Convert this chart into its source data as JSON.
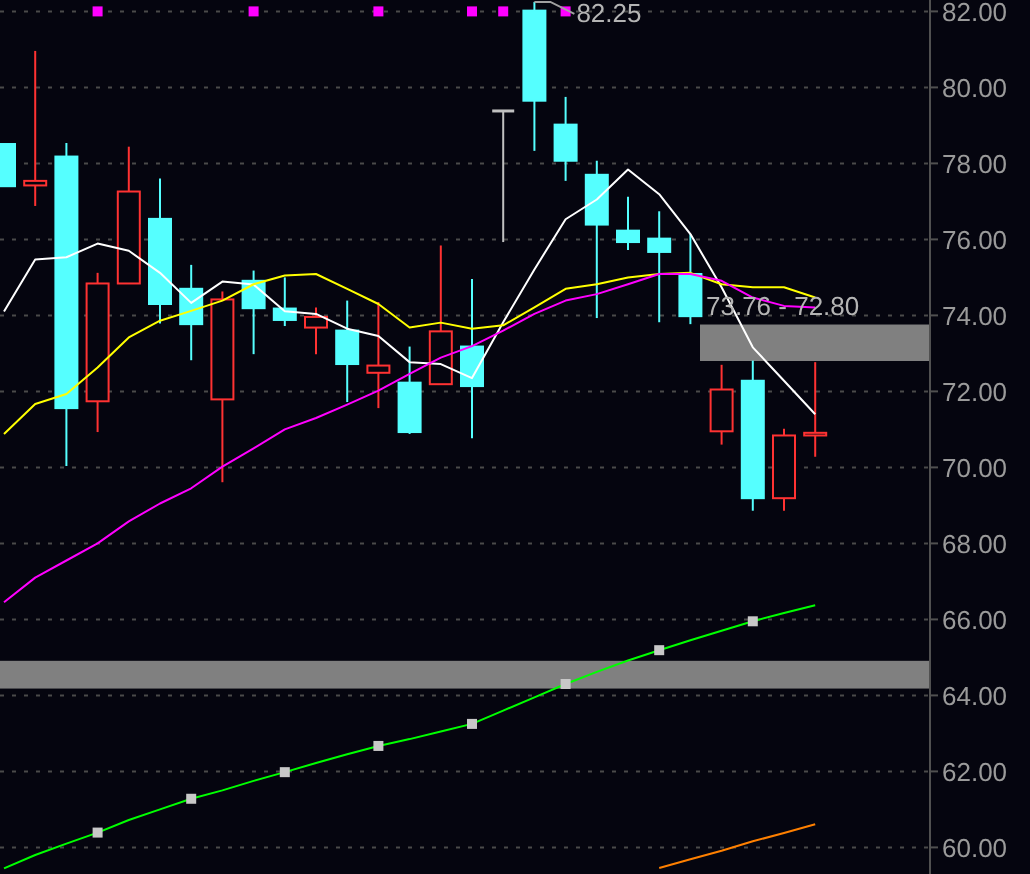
{
  "chart_data": {
    "type": "candlestick",
    "categories": [
      null,
      null,
      null,
      null,
      null,
      null,
      null,
      null,
      null,
      null,
      null,
      null,
      null,
      null,
      null,
      null,
      null,
      null,
      null,
      null,
      null,
      null,
      null,
      null,
      null,
      null,
      null
    ],
    "ohlc": [
      [
        78.51,
        78.51,
        77.4,
        77.4
      ],
      [
        77.42,
        80.96,
        76.88,
        77.54
      ],
      [
        78.18,
        78.54,
        70.04,
        71.56
      ],
      [
        71.74,
        75.12,
        70.93,
        74.84
      ],
      [
        74.84,
        78.44,
        74.84,
        77.26
      ],
      [
        76.54,
        77.6,
        73.79,
        74.3
      ],
      [
        74.7,
        75.33,
        72.82,
        73.77
      ],
      [
        71.79,
        74.63,
        69.61,
        74.42
      ],
      [
        74.91,
        75.18,
        72.98,
        74.19
      ],
      [
        74.18,
        75.0,
        73.72,
        73.88
      ],
      [
        73.68,
        74.21,
        72.98,
        73.96
      ],
      [
        73.6,
        74.39,
        71.72,
        72.72
      ],
      [
        72.49,
        74.35,
        71.56,
        72.68
      ],
      [
        72.23,
        73.18,
        70.88,
        70.93
      ],
      [
        72.19,
        75.84,
        72.19,
        73.58
      ],
      [
        73.18,
        74.96,
        70.77,
        72.14
      ],
      [
        79.38,
        79.38,
        75.93,
        79.38
      ],
      [
        82.02,
        82.25,
        78.33,
        79.65
      ],
      [
        79.02,
        79.75,
        77.54,
        78.07
      ],
      [
        77.7,
        78.07,
        73.93,
        76.39
      ],
      [
        76.23,
        77.12,
        75.72,
        75.93
      ],
      [
        76.02,
        76.74,
        73.82,
        75.67
      ],
      [
        75.09,
        76.14,
        73.77,
        73.98
      ],
      [
        70.95,
        72.7,
        70.6,
        72.05
      ],
      [
        72.28,
        72.81,
        68.86,
        69.19
      ],
      [
        69.19,
        71.02,
        68.86,
        70.84
      ],
      [
        70.84,
        72.77,
        70.28,
        70.91
      ]
    ],
    "colors": [
      "#55ffff",
      "#ff3232",
      "#55ffff",
      "#ff3232",
      "#ff3232",
      "#55ffff",
      "#55ffff",
      "#ff3232",
      "#55ffff",
      "#55ffff",
      "#ff3232",
      "#55ffff",
      "#ff3232",
      "#55ffff",
      "#ff3232",
      "#55ffff",
      "#c0c0c0",
      "#55ffff",
      "#55ffff",
      "#55ffff",
      "#55ffff",
      "#55ffff",
      "#55ffff",
      "#ff3232",
      "#55ffff",
      "#ff3232",
      "#ff3232"
    ],
    "series": [
      {
        "type": "line",
        "color": "#ffffff",
        "values": [
          74.1,
          75.47,
          75.53,
          75.89,
          75.7,
          75.12,
          74.33,
          74.89,
          74.81,
          74.11,
          74.04,
          73.65,
          73.46,
          72.77,
          72.72,
          72.35,
          73.82,
          75.21,
          76.53,
          77.05,
          77.84,
          77.19,
          76.14,
          74.74,
          73.16,
          72.28,
          71.4
        ]
      },
      {
        "type": "line",
        "color": "#ffff00",
        "values": [
          70.88,
          71.67,
          71.93,
          72.63,
          73.42,
          73.86,
          74.12,
          74.39,
          74.82,
          75.05,
          75.09,
          74.7,
          74.3,
          73.68,
          73.81,
          73.65,
          73.74,
          74.21,
          74.7,
          74.82,
          75.0,
          75.09,
          75.12,
          74.82,
          74.74,
          74.74,
          74.47
        ]
      },
      {
        "type": "line",
        "color": "#ff00ff",
        "values": [
          66.45,
          67.1,
          67.55,
          68.0,
          68.58,
          69.05,
          69.45,
          70.02,
          70.5,
          71.0,
          71.3,
          71.65,
          72.02,
          72.46,
          72.89,
          73.19,
          73.6,
          74.04,
          74.39,
          74.56,
          74.82,
          75.09,
          75.09,
          74.91,
          74.47,
          74.25,
          74.21
        ]
      },
      {
        "type": "line",
        "color": "#00ff00",
        "values": [
          59.45,
          59.8,
          60.1,
          60.39,
          60.72,
          61.0,
          61.28,
          61.5,
          61.75,
          61.98,
          62.22,
          62.45,
          62.67,
          62.85,
          63.05,
          63.25,
          63.6,
          63.95,
          64.3,
          64.62,
          64.92,
          65.19,
          65.45,
          65.7,
          65.95,
          66.17,
          66.37
        ]
      },
      {
        "type": "line",
        "color": "#ff8000",
        "values": [
          null,
          null,
          null,
          null,
          null,
          null,
          null,
          null,
          null,
          null,
          null,
          null,
          null,
          null,
          null,
          null,
          null,
          null,
          null,
          null,
          null,
          59.46,
          59.69,
          59.91,
          60.16,
          60.38,
          60.61
        ]
      },
      {
        "type": "scatter",
        "color": "#c8c8c8",
        "marker": "square",
        "values": [
          null,
          null,
          null,
          60.39,
          null,
          null,
          61.28,
          null,
          null,
          61.98,
          null,
          null,
          62.67,
          null,
          null,
          63.25,
          null,
          null,
          64.3,
          null,
          null,
          65.19,
          null,
          null,
          65.95,
          null,
          null
        ]
      },
      {
        "type": "scatter",
        "color": "#ff00ff",
        "marker": "square",
        "values": [
          null,
          null,
          null,
          82.0,
          null,
          null,
          null,
          null,
          82.0,
          null,
          null,
          null,
          82.0,
          null,
          null,
          82.0,
          82.0,
          null,
          82.0,
          null,
          null,
          null,
          null,
          null,
          null,
          null,
          null
        ]
      }
    ],
    "ylim": [
      59.3,
      82.3
    ],
    "yticks": [
      {
        "value": 60,
        "label": "60.00"
      },
      {
        "value": 62,
        "label": "62.00"
      },
      {
        "value": 64,
        "label": "64.00"
      },
      {
        "value": 66,
        "label": "66.00"
      },
      {
        "value": 68,
        "label": "68.00"
      },
      {
        "value": 70,
        "label": "70.00"
      },
      {
        "value": 72,
        "label": "72.00"
      },
      {
        "value": 74,
        "label": "74.00"
      },
      {
        "value": 76,
        "label": "76.00"
      },
      {
        "value": 78,
        "label": "78.00"
      },
      {
        "value": 80,
        "label": "80.00"
      },
      {
        "value": 82,
        "label": "82.00"
      }
    ],
    "grid": "y",
    "tick_labels": "y",
    "line_style": "solid",
    "bands": [
      {
        "axis": "y",
        "from": 72.8,
        "to": 73.76,
        "label": "73.76 - 72.80",
        "color": "#808080"
      },
      {
        "axis": "y",
        "from": 64.18,
        "to": 64.91,
        "color": "#808080"
      }
    ],
    "annotations": [
      "82.25"
    ]
  }
}
